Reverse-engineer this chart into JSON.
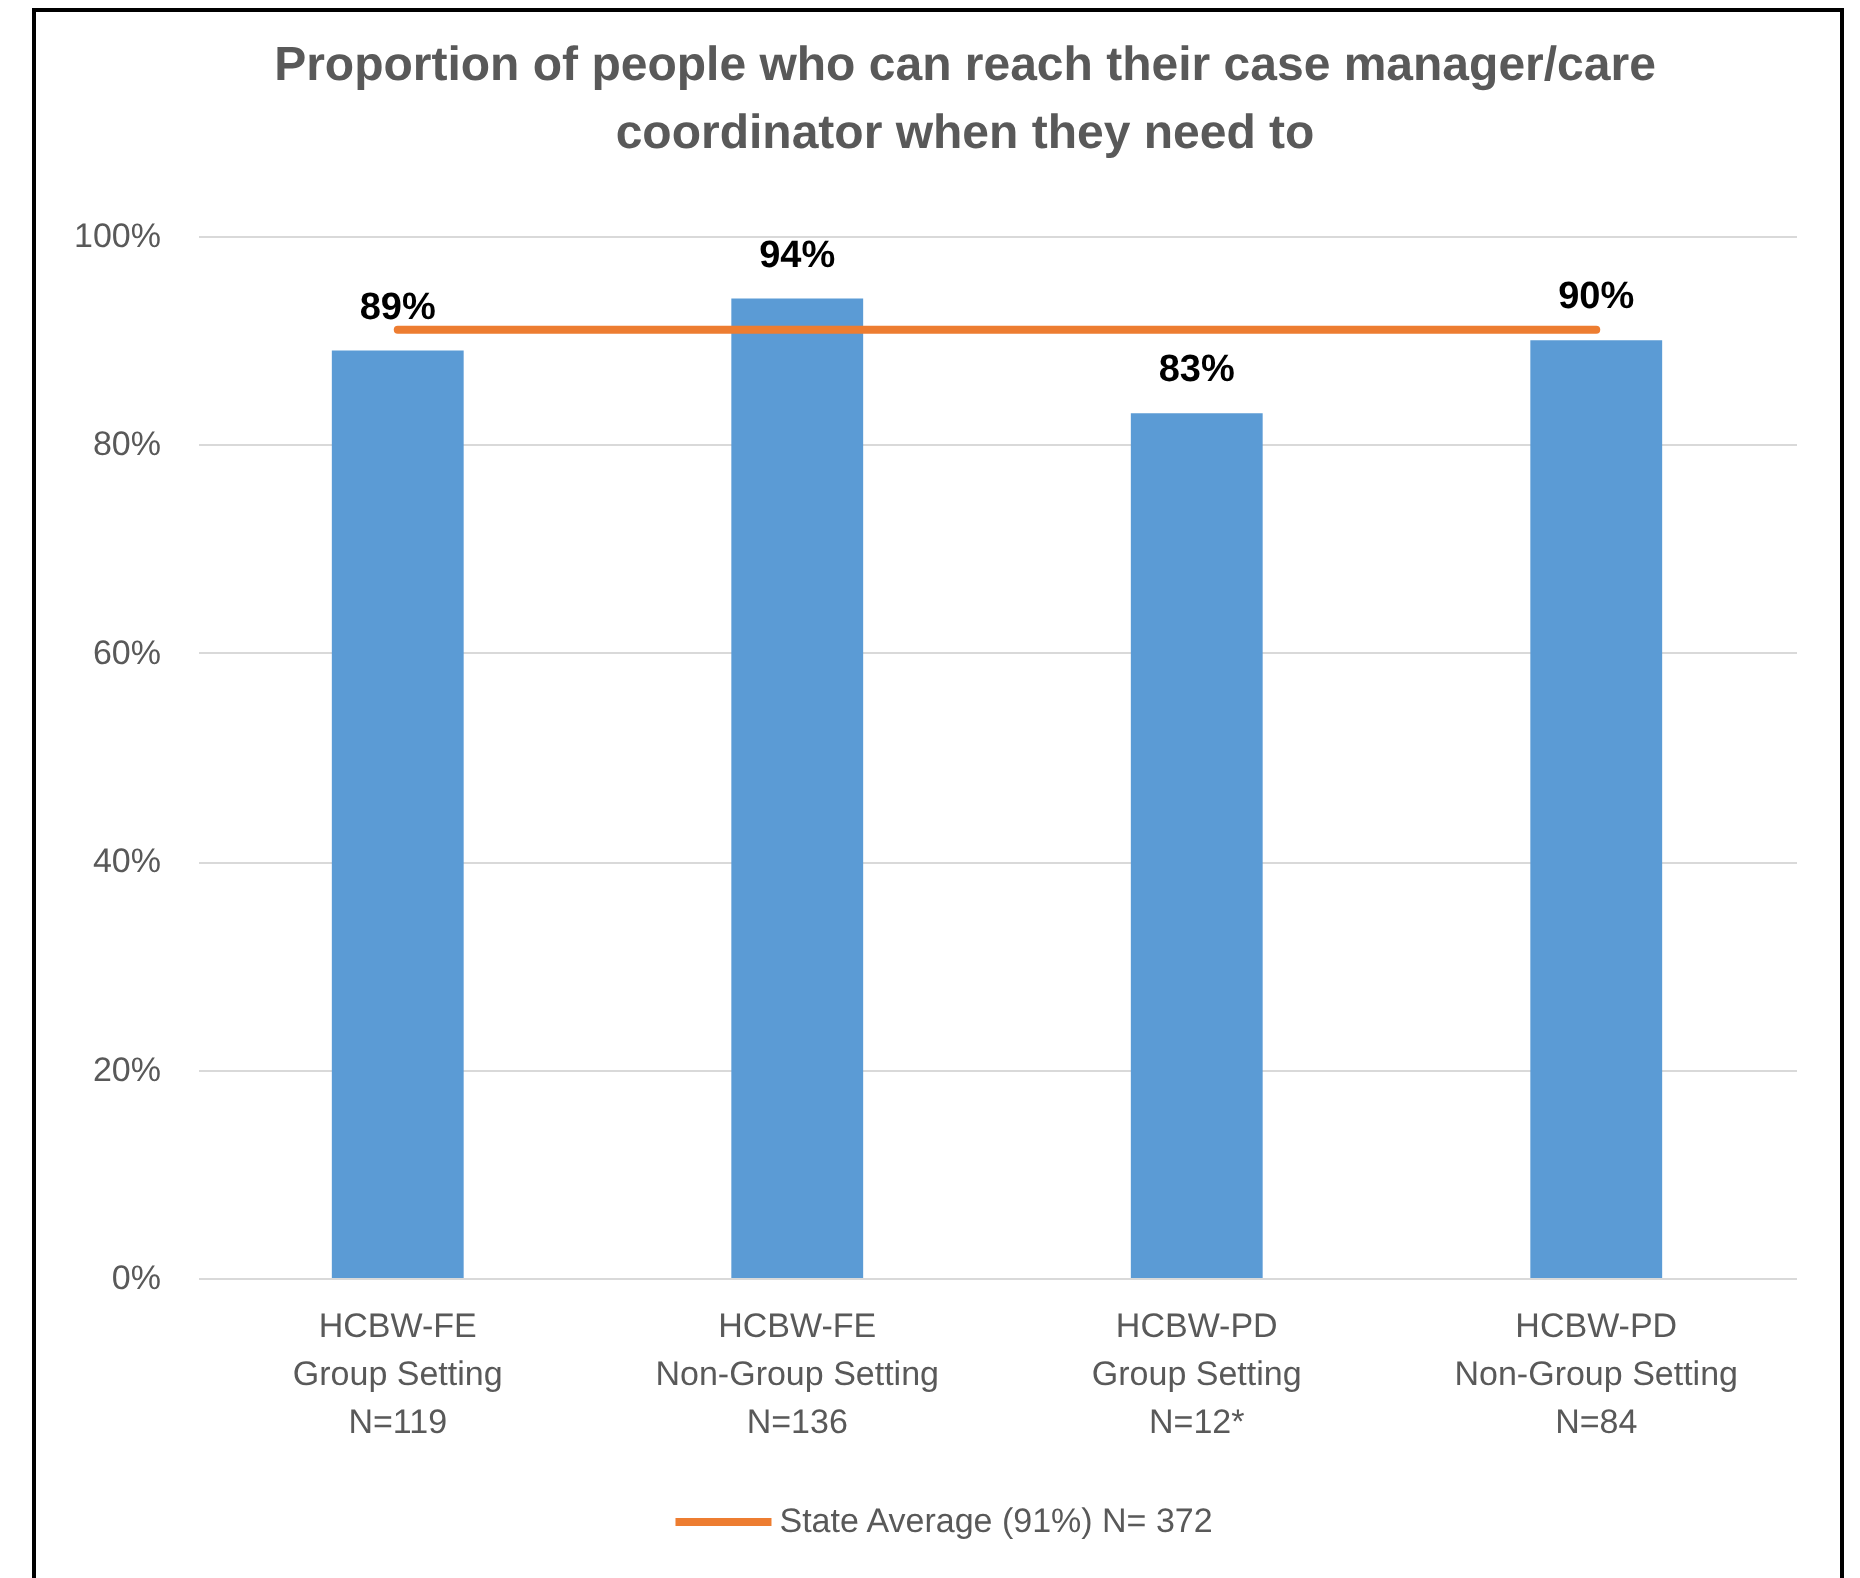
{
  "chart_data": {
    "type": "bar",
    "title": "Proportion of people who can reach their case manager/care coordinator when they need to",
    "categories": [
      "HCBW-FE\nGroup Setting\nN=119",
      "HCBW-FE\nNon-Group Setting\nN=136",
      "HCBW-PD\nGroup Setting\nN=12*",
      "HCBW-PD\nNon-Group Setting\nN=84"
    ],
    "series": [
      {
        "color": "#5b9bd5",
        "values": [
          89,
          94,
          83,
          90
        ],
        "value_labels": [
          "89%",
          "94%",
          "83%",
          "90%"
        ]
      },
      {
        "type": "line",
        "name": "State Average (91%) N= 372",
        "color": "#ed7d31",
        "values": [
          91,
          91,
          91,
          91
        ],
        "line_style": "solid"
      }
    ],
    "ylim": [
      0,
      100
    ],
    "yticks": [
      {
        "value": 0,
        "label": "0%"
      },
      {
        "value": 20,
        "label": "20%"
      },
      {
        "value": 40,
        "label": "40%"
      },
      {
        "value": 60,
        "label": "60%"
      },
      {
        "value": 80,
        "label": "80%"
      },
      {
        "value": 100,
        "label": "100%"
      }
    ],
    "grid": "y",
    "legend": "bottom"
  }
}
